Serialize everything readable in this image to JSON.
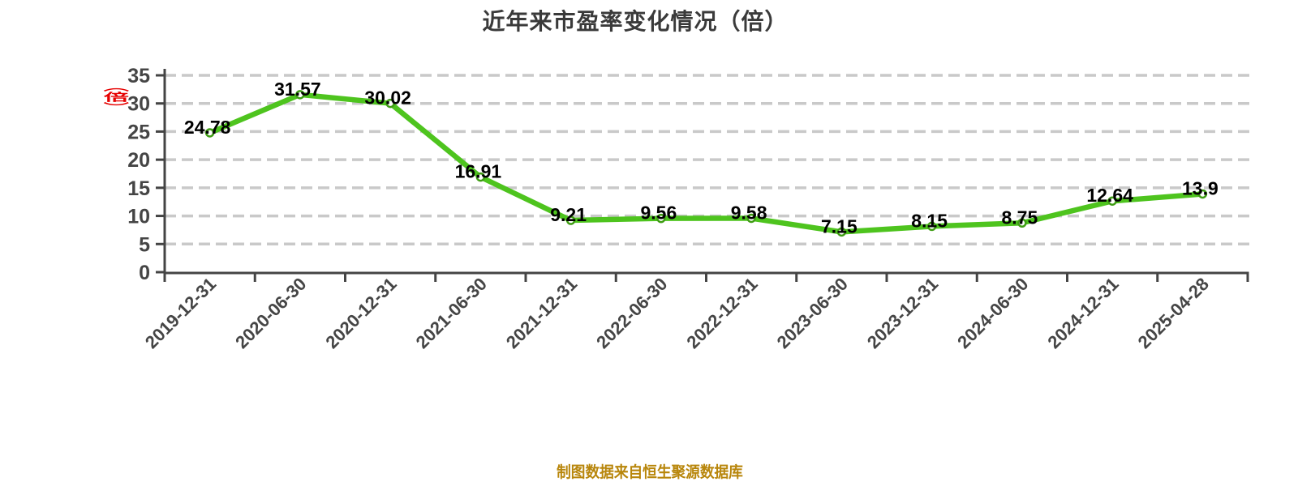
{
  "page": {
    "title": "近年来市盈率变化情况（倍）",
    "y_axis_stamp": "（倍）",
    "footer": "制图数据来自恒生聚源数据库"
  },
  "colors": {
    "line": "#4ec41e",
    "marker_fill": "#ffffff",
    "marker_stroke": "#3f9d14",
    "grid": "#c9c9c9",
    "axis": "#444444",
    "tick_label": "#454545",
    "value_label": "#000000",
    "title": "#3a3a3a",
    "footer": "#b8860b",
    "stamp": "#e60000"
  },
  "chart_data": {
    "type": "line",
    "title": "近年来市盈率变化情况（倍）",
    "categories": [
      "2019-12-31",
      "2020-06-30",
      "2020-12-31",
      "2021-06-30",
      "2021-12-31",
      "2022-06-30",
      "2022-12-31",
      "2023-06-30",
      "2023-12-31",
      "2024-06-30",
      "2024-12-31",
      "2025-04-28"
    ],
    "values": [
      24.78,
      31.57,
      30.02,
      16.91,
      9.21,
      9.56,
      9.58,
      7.15,
      8.15,
      8.75,
      12.64,
      13.9
    ],
    "ylabel": "（倍）",
    "xlabel": "",
    "ylim": [
      0,
      35
    ],
    "ytick_step": 5,
    "grid": "dashed-horizontal",
    "legend": "none",
    "x_label_rotation": -45,
    "marker": "circle-white",
    "source_note": "制图数据来自恒生聚源数据库"
  }
}
